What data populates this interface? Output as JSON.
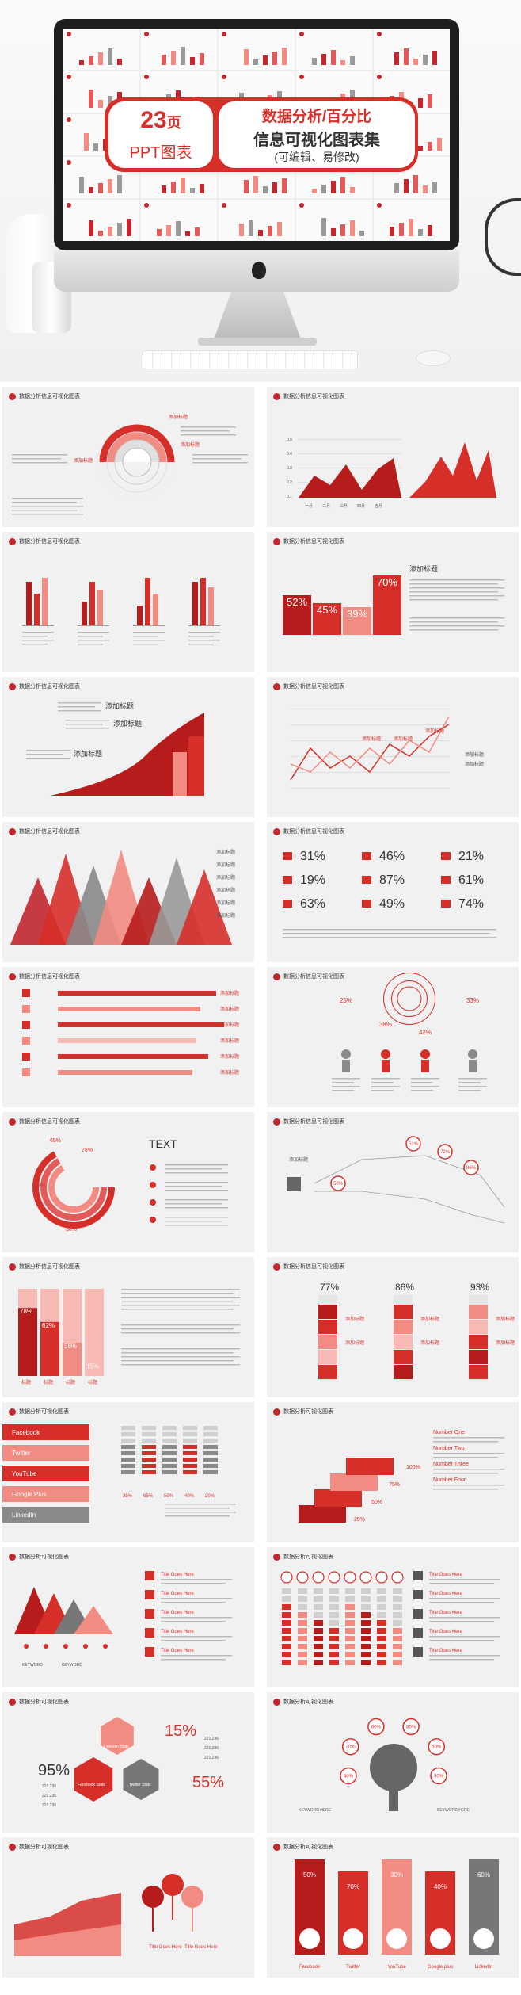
{
  "hero": {
    "count": "23",
    "count_unit": "页",
    "ppt_label": "PPT图表",
    "title_line1": "数据分析/百分比",
    "title_line2": "信息可视化图表集",
    "title_line3": "(可编辑、易修改)"
  },
  "colors": {
    "accent": "#d62f2a",
    "dark_red": "#b71c1c",
    "pink": "#f28b82",
    "gray": "#7a7a7a"
  },
  "slide_title_a": "数据分析信息可视化图表",
  "slide_title_b": "数据分析可视化图表",
  "labels": {
    "add_title": "添加标题",
    "text": "TEXT",
    "desc_short": "Please replace text, click add relevant headline, modify the text content",
    "lorem": "Lorem ipsum dolor sit amet, consectetuer adipiscing elit. Maecenas porttitor congue massa. Fusce posuere, magna sed pulvinar ultricies, purus lectus malesuada libero, sit amet commodo magna eros quis urna.",
    "title_goes_here": "Title Goes Here",
    "keyword": "KEYWORD"
  },
  "slide2": {
    "months": [
      "一月",
      "二月",
      "三月",
      "四月",
      "五月",
      "六月",
      "七月",
      "八月"
    ],
    "ylabels": [
      "0.1",
      "0.2",
      "0.3",
      "0.4",
      "0.5"
    ]
  },
  "slide4": {
    "values": [
      "52%",
      "45%",
      "39%",
      "70%"
    ]
  },
  "slide8": {
    "rows": [
      [
        "31%",
        "46%",
        "21%"
      ],
      [
        "19%",
        "87%",
        "61%"
      ],
      [
        "63%",
        "49%",
        "74%"
      ]
    ]
  },
  "slide10": {
    "values": [
      "25%",
      "38%",
      "42%",
      "33%"
    ]
  },
  "slide11": {
    "values": [
      "65%",
      "78%",
      "55%",
      "38%"
    ]
  },
  "slide12": {
    "values": [
      "51%",
      "72%",
      "86%",
      "50%"
    ]
  },
  "slide13": {
    "values": [
      "78%",
      "62%",
      "38%",
      "15%"
    ],
    "axis": "标题"
  },
  "slide14": {
    "values": [
      "77%",
      "86%",
      "93%"
    ]
  },
  "slide15": {
    "socials": [
      "Facebook",
      "Twitter",
      "YouTube",
      "Google Plus",
      "LinkedIn"
    ],
    "values": [
      "35%",
      "65%",
      "50%",
      "40%",
      "20%"
    ]
  },
  "slide16": {
    "values": [
      "25%",
      "50%",
      "75%",
      "100%"
    ],
    "steps": [
      "Number One",
      "Number Two",
      "Number Three",
      "Number Four"
    ]
  },
  "slide21": {
    "values": [
      "95%",
      "15%",
      "55%"
    ],
    "labels": [
      "Facebook Stats",
      "LinkedIn Stats",
      "Twitter Stats"
    ],
    "mini": [
      "221,236",
      "221,236",
      "221,236",
      "221,236",
      "221,236",
      "221,236"
    ]
  },
  "slide22": {
    "values": [
      "40%",
      "20%",
      "60%",
      "80%",
      "50%",
      "30%"
    ],
    "keywords": "KEYWORD HERE"
  },
  "slide24": {
    "values": [
      "50%",
      "70%",
      "30%",
      "40%",
      "60%"
    ],
    "socials": [
      "Facebook",
      "Twitter",
      "YouTube",
      "Google plus",
      "LinkedIn"
    ]
  }
}
